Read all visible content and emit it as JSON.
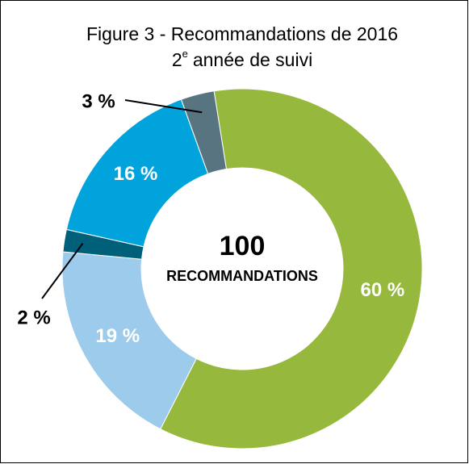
{
  "chart_data": {
    "type": "donut",
    "title": "Figure 3 - Recommandations de 2016",
    "subtitle_parts": [
      "2",
      "e",
      "année de suivi"
    ],
    "center_value": 100,
    "center_label": "RECOMMANDATIONS",
    "values": [
      60,
      19,
      2,
      16,
      3
    ],
    "value_labels": [
      "60 %",
      "19 %",
      "2 %",
      "16 %",
      "3 %"
    ],
    "colors": [
      "#96b83c",
      "#9dcbec",
      "#00607a",
      "#00a3db",
      "#587480"
    ]
  }
}
